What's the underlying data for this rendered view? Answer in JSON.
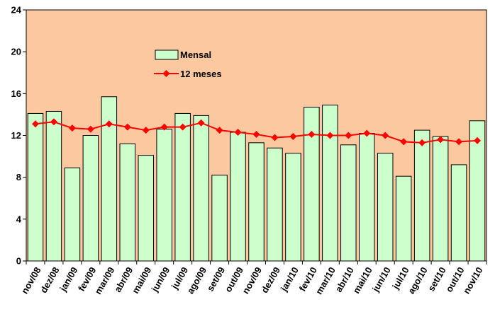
{
  "chart_data": {
    "type": "bar",
    "categories": [
      "nov/08",
      "dez/08",
      "jan/09",
      "fev/09",
      "mar/09",
      "abr/09",
      "mai/09",
      "jun/09",
      "jul/09",
      "ago/09",
      "set/09",
      "out/09",
      "nov/09",
      "dez/09",
      "jan/10",
      "fev/10",
      "mar/10",
      "abr/10",
      "mai/10",
      "jun/10",
      "jul/10",
      "ago/10",
      "set/10",
      "out/10",
      "nov/10"
    ],
    "series": [
      {
        "name": "Mensal",
        "kind": "bar",
        "color": "#ccffcc",
        "values": [
          14.1,
          14.3,
          8.9,
          12.0,
          15.7,
          11.2,
          10.1,
          12.6,
          14.1,
          13.9,
          8.2,
          12.3,
          11.3,
          10.8,
          10.3,
          14.7,
          14.9,
          11.1,
          12.2,
          10.3,
          8.1,
          12.5,
          11.9,
          9.2,
          13.4
        ]
      },
      {
        "name": "12 meses",
        "kind": "line",
        "color": "#ff0000",
        "values": [
          13.1,
          13.3,
          12.7,
          12.6,
          13.1,
          12.8,
          12.5,
          12.8,
          12.8,
          13.2,
          12.5,
          12.3,
          12.1,
          11.8,
          11.9,
          12.1,
          12.0,
          12.0,
          12.2,
          12.0,
          11.4,
          11.3,
          11.6,
          11.4,
          11.5
        ]
      }
    ],
    "ylim": [
      0,
      24
    ],
    "yticks": [
      0,
      4,
      8,
      12,
      16,
      20,
      24
    ],
    "ytick_labels": [
      "0",
      "4",
      "8",
      "12",
      "16",
      "20",
      "24"
    ],
    "plot_background": "#fcc89f",
    "grid": false,
    "legend_position": "inside-top-center"
  }
}
